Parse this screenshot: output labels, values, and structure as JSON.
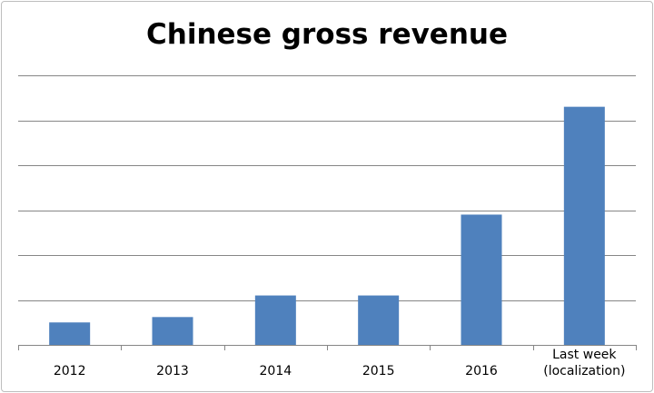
{
  "chart_data": {
    "type": "bar",
    "title": "Chinese gross revenue",
    "categories": [
      "2012",
      "2013",
      "2014",
      "2015",
      "2016",
      "Last week\n(localization)"
    ],
    "values": [
      0.5,
      0.62,
      1.1,
      1.1,
      2.9,
      5.3
    ],
    "ylim": [
      0,
      6
    ],
    "grid": true,
    "y_tick_labels_shown": false,
    "xlabel": "",
    "ylabel": "",
    "colors": {
      "bar": "#4f81bd",
      "grid": "#868686",
      "axis": "#868686"
    }
  }
}
